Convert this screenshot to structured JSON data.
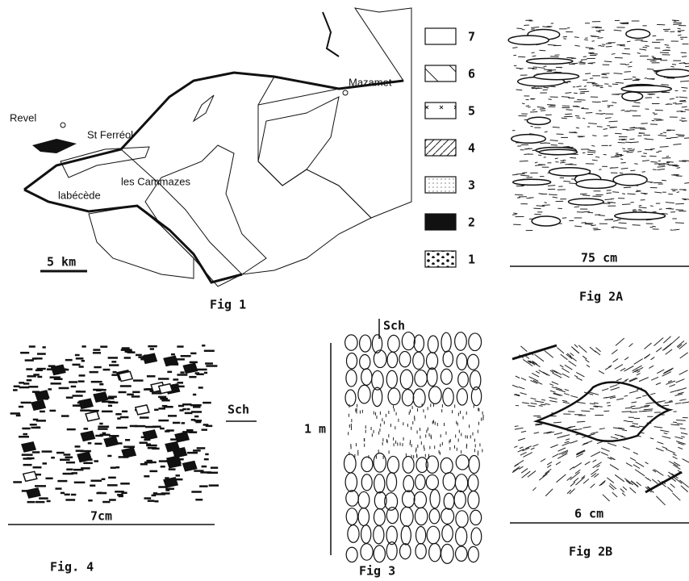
{
  "fig1": {
    "caption": "Fig 1",
    "places": [
      "Revel",
      "St Ferréol",
      "les Cammazes",
      "labécède",
      "Mazamet"
    ],
    "scale": "5 km",
    "legend": [
      "7",
      "6",
      "5",
      "4",
      "3",
      "2",
      "1"
    ]
  },
  "fig2a": {
    "caption": "Fig 2A",
    "scale": "75 cm"
  },
  "fig2b": {
    "caption": "Fig 2B",
    "scale": "6 cm"
  },
  "fig3": {
    "caption": "Fig 3",
    "label": "Sch",
    "scale": "1 m"
  },
  "fig4": {
    "caption": "Fig. 4",
    "label": "Sch",
    "scale": "7cm"
  }
}
